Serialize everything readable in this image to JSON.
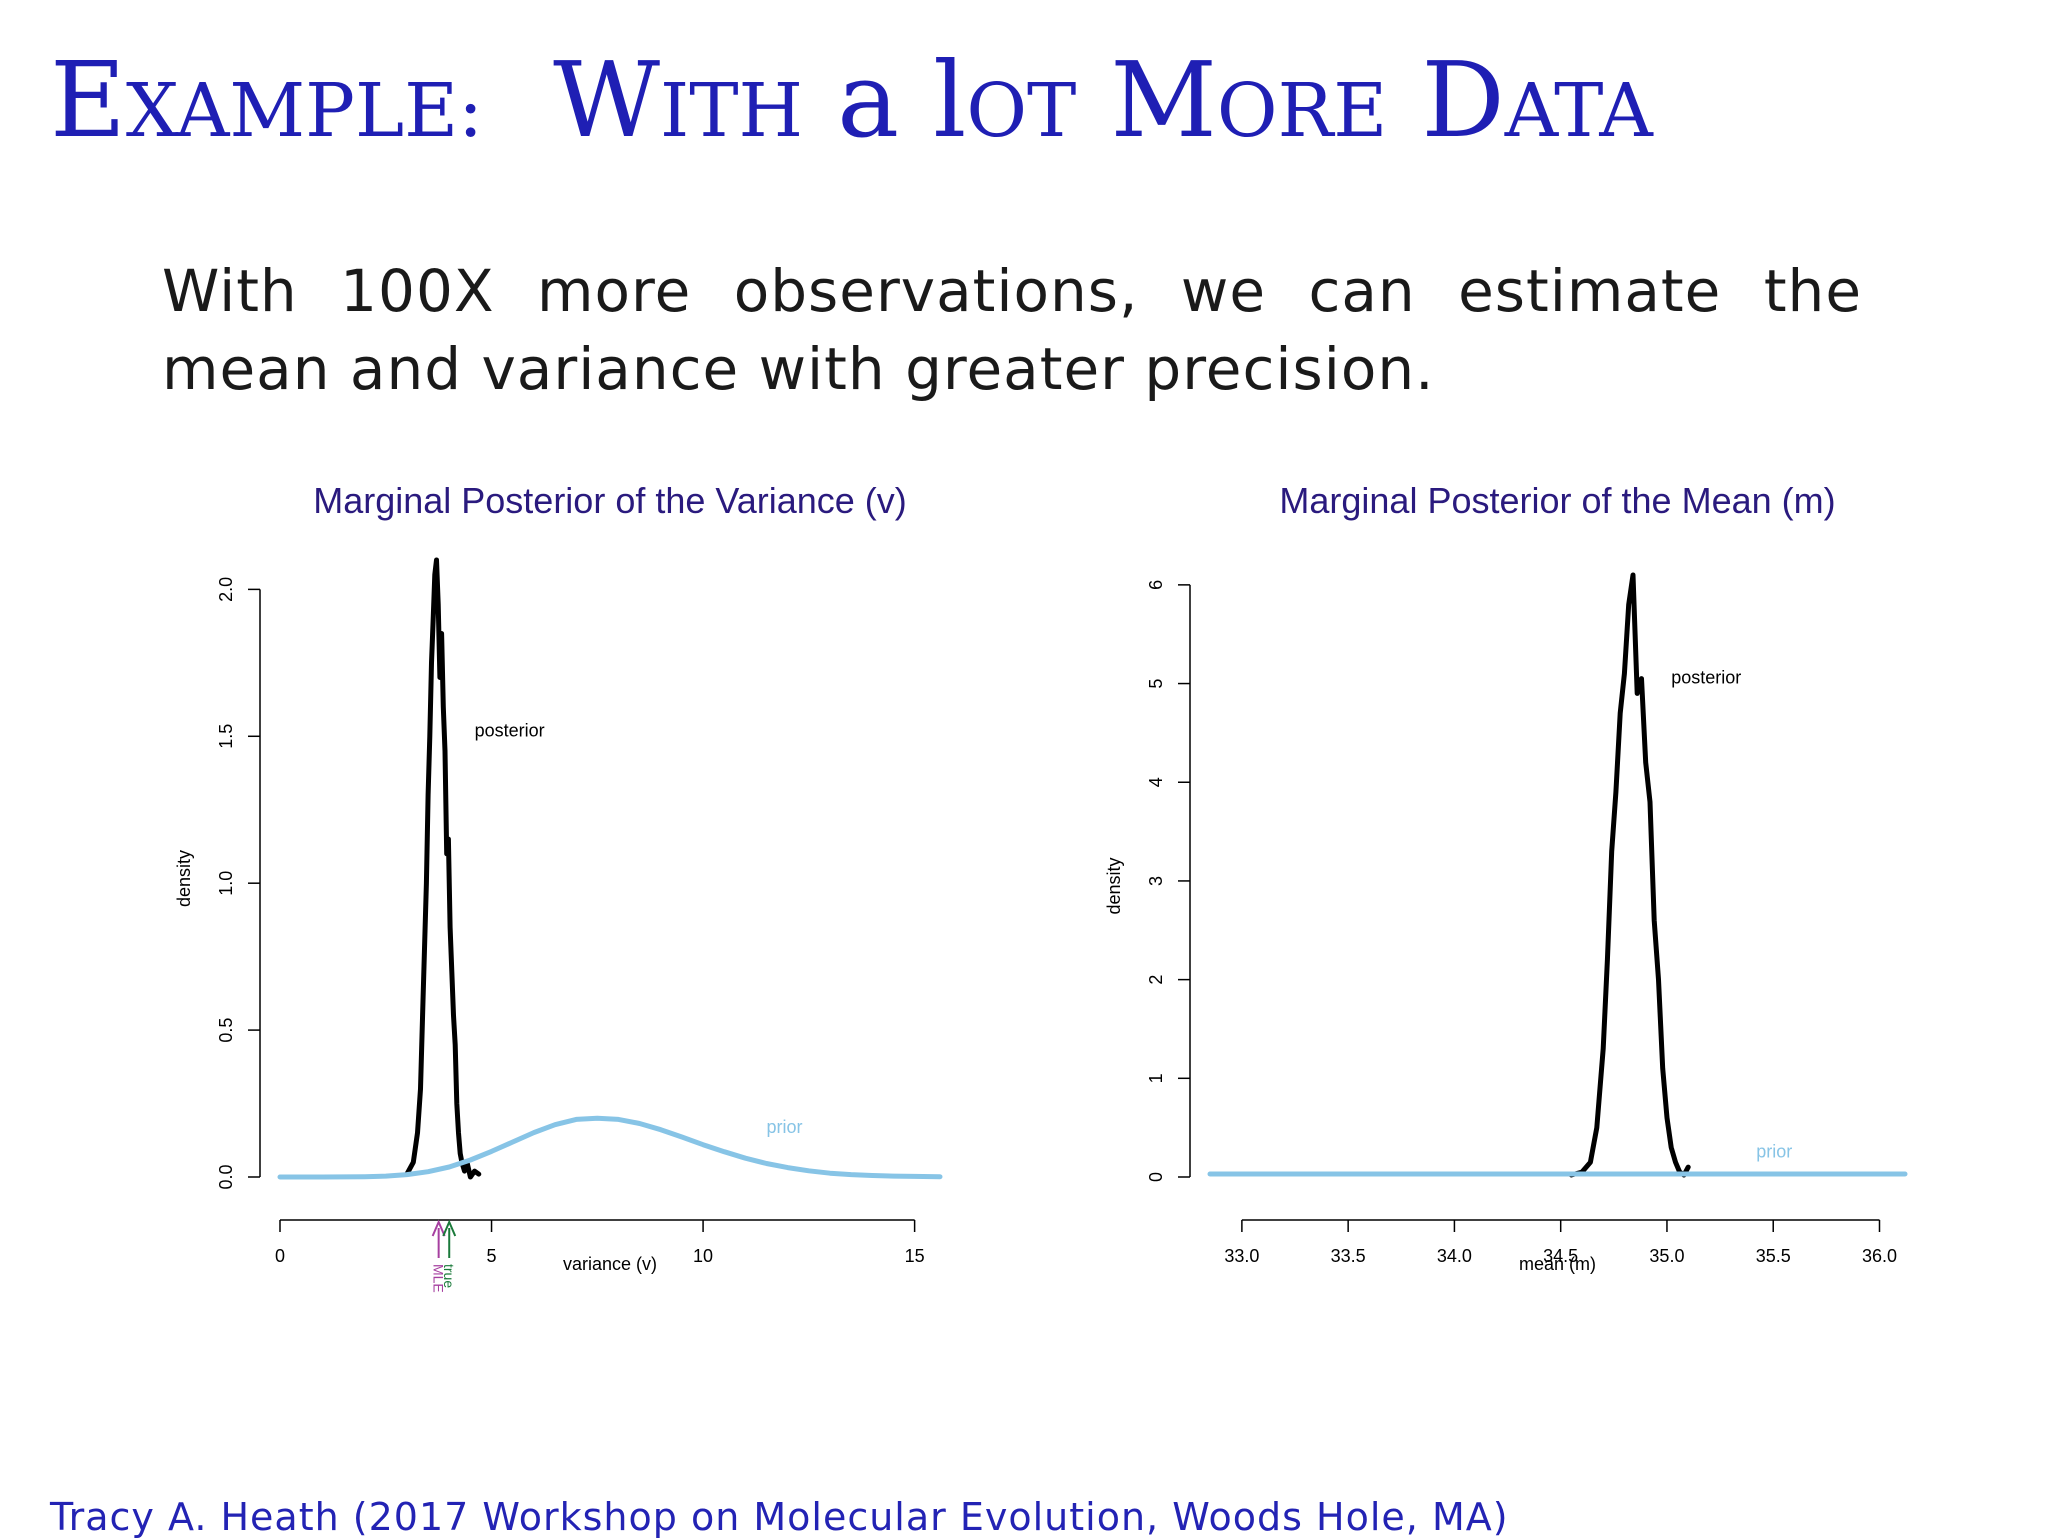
{
  "slide": {
    "title_parts": [
      {
        "text": "Example:",
        "gap_after": true
      },
      {
        "text": "With",
        "gap_after": false
      },
      {
        "text": "a",
        "gap_after": false
      },
      {
        "text": "lot",
        "gap_after": false
      },
      {
        "text": "More",
        "gap_after": false
      },
      {
        "text": "Data",
        "gap_after": false
      }
    ],
    "intro": "With 100X more observations, we can estimate the mean and variance with greater precision.",
    "footer": "Tracy A. Heath (2017 Workshop on Molecular Evolution, Woods Hole, MA)",
    "colors": {
      "title": "#1f1fb4",
      "footer": "#2323b4",
      "chart_title": "#2a1a7e",
      "posterior": "#000000",
      "prior": "#87c4e6",
      "mle": "#a63fa0",
      "true": "#1a7a3a"
    }
  },
  "chart_data": [
    {
      "type": "line",
      "title": "Marginal Posterior of the Variance (v)",
      "xlabel": "variance (v)",
      "ylabel": "density",
      "xlim": [
        0,
        15.6
      ],
      "ylim": [
        0,
        2.1
      ],
      "xticks": [
        0,
        5,
        10,
        15
      ],
      "xtick_labels": [
        "0",
        "5",
        "10",
        "15"
      ],
      "yticks": [
        0,
        0.5,
        1,
        1.5,
        2
      ],
      "ytick_labels": [
        "0.0",
        "0.5",
        "1.0",
        "1.5",
        "2.0"
      ],
      "grid": false,
      "series": [
        {
          "name": "posterior",
          "x": [
            3.0,
            3.15,
            3.25,
            3.32,
            3.38,
            3.42,
            3.46,
            3.5,
            3.54,
            3.58,
            3.62,
            3.66,
            3.7,
            3.74,
            3.78,
            3.82,
            3.86,
            3.9,
            3.94,
            3.98,
            4.02,
            4.06,
            4.1,
            4.14,
            4.18,
            4.22,
            4.26,
            4.3,
            4.36,
            4.42,
            4.5,
            4.6,
            4.7
          ],
          "y": [
            0.01,
            0.05,
            0.15,
            0.3,
            0.6,
            0.8,
            1.0,
            1.3,
            1.5,
            1.75,
            1.9,
            2.05,
            2.1,
            1.95,
            1.7,
            1.85,
            1.6,
            1.45,
            1.1,
            1.15,
            0.85,
            0.7,
            0.55,
            0.45,
            0.25,
            0.15,
            0.08,
            0.05,
            0.02,
            0.05,
            0.0,
            0.02,
            0.01
          ]
        },
        {
          "name": "prior",
          "x": [
            0,
            1,
            2,
            2.5,
            3,
            3.5,
            4,
            4.5,
            5,
            5.5,
            6,
            6.5,
            7,
            7.5,
            8,
            8.5,
            9,
            9.5,
            10,
            10.5,
            11,
            11.5,
            12,
            12.5,
            13,
            13.5,
            14,
            14.5,
            15,
            15.6
          ],
          "y": [
            0.0,
            0.0,
            0.001,
            0.003,
            0.008,
            0.018,
            0.034,
            0.058,
            0.087,
            0.119,
            0.151,
            0.178,
            0.196,
            0.2,
            0.196,
            0.182,
            0.161,
            0.136,
            0.11,
            0.086,
            0.064,
            0.046,
            0.032,
            0.021,
            0.013,
            0.008,
            0.005,
            0.003,
            0.002,
            0.001
          ]
        }
      ],
      "annotations": [
        {
          "text": "posterior",
          "x": 4.6,
          "y": 1.5
        },
        {
          "text": "prior",
          "x": 11.5,
          "y": 0.15
        }
      ],
      "arrows": [
        {
          "label": "MLE",
          "x": 3.75
        },
        {
          "label": "true",
          "x": 4.0
        }
      ]
    },
    {
      "type": "line",
      "title": "Marginal Posterior of the Mean (m)",
      "xlabel": "mean (m)",
      "ylabel": "density",
      "xlim": [
        32.85,
        36.12
      ],
      "ylim": [
        0,
        6.1
      ],
      "xticks": [
        33.0,
        33.5,
        34.0,
        34.5,
        35.0,
        35.5,
        36.0
      ],
      "xtick_labels": [
        "33.0",
        "33.5",
        "34.0",
        "34.5",
        "35.0",
        "35.5",
        "36.0"
      ],
      "yticks": [
        0,
        1,
        2,
        3,
        4,
        5,
        6
      ],
      "ytick_labels": [
        "0",
        "1",
        "2",
        "3",
        "4",
        "5",
        "6"
      ],
      "grid": false,
      "series": [
        {
          "name": "posterior",
          "x": [
            34.55,
            34.6,
            34.64,
            34.67,
            34.7,
            34.72,
            34.74,
            34.76,
            34.78,
            34.8,
            34.82,
            34.84,
            34.85,
            34.86,
            34.88,
            34.9,
            34.92,
            34.94,
            34.96,
            34.98,
            35.0,
            35.02,
            35.04,
            35.06,
            35.08,
            35.1
          ],
          "y": [
            0.02,
            0.05,
            0.15,
            0.5,
            1.3,
            2.2,
            3.3,
            3.9,
            4.7,
            5.1,
            5.8,
            6.1,
            5.5,
            4.9,
            5.05,
            4.2,
            3.8,
            2.6,
            2.0,
            1.1,
            0.6,
            0.3,
            0.15,
            0.05,
            0.02,
            0.1
          ]
        },
        {
          "name": "prior",
          "x": [
            32.85,
            36.12
          ],
          "y": [
            0.03,
            0.03
          ]
        }
      ],
      "annotations": [
        {
          "text": "posterior",
          "x": 35.02,
          "y": 5.0
        },
        {
          "text": "prior",
          "x": 35.42,
          "y": 0.2
        }
      ]
    }
  ]
}
